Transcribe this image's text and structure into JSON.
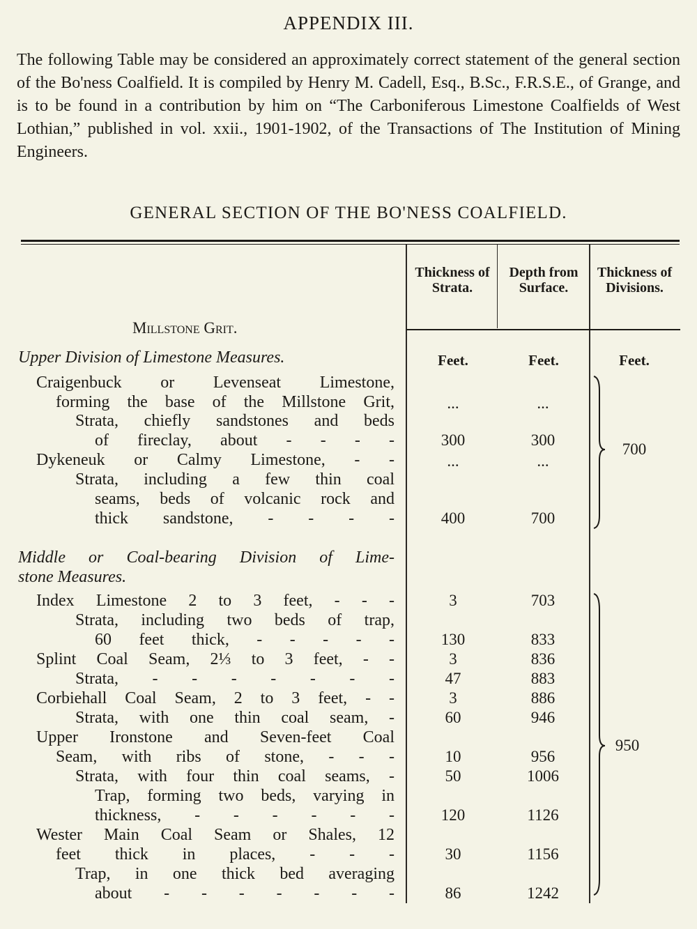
{
  "title": "APPENDIX III.",
  "intro": "The following Table may be considered an approximately correct statement of the general section of the Bo'ness Coalfield. It is compiled by Henry M. Cadell, Esq., B.Sc., F.R.S.E., of Grange, and is to be found in a contribution by him on “The Carboniferous Limestone Coalfields of West Lothian,” published in vol. xxii., 1901-1902, of the Transactions of The Institution of Mining Engineers.",
  "section_title": "GENERAL SECTION OF THE BO'NESS COALFIELD.",
  "table": {
    "headers": [
      "Thickness of Strata.",
      "Depth from Surface.",
      "Thickness of Divisions."
    ],
    "units": [
      "Feet.",
      "Feet.",
      "Feet."
    ],
    "millstone_grit": "Millstone Grit.",
    "upper_division_heading": "Upper Division of Limestone Measures.",
    "rows": [
      {
        "text": "Craigenbuck or Levenseat Limestone,",
        "strata": "",
        "depth": ""
      },
      {
        "text": "forming the base of the Millstone Grit,",
        "strata": "...",
        "depth": "..."
      },
      {
        "text": "Strata, chiefly sandstones and beds",
        "strata": "",
        "depth": ""
      },
      {
        "text": "of fireclay, about - - - -",
        "strata": "300",
        "depth": "300"
      },
      {
        "text": "Dykeneuk or Calmy Limestone, - -",
        "strata": "...",
        "depth": "..."
      },
      {
        "text": "Strata, including a few thin coal",
        "strata": "",
        "depth": ""
      },
      {
        "text": "seams, beds of volcanic rock and",
        "strata": "",
        "depth": ""
      },
      {
        "text": "thick sandstone, - - - -",
        "strata": "400",
        "depth": "700"
      },
      {
        "text": "Middle or Coal-bearing Division of Lime-",
        "strata": "",
        "depth": ""
      },
      {
        "text": "stone Measures.",
        "strata": "",
        "depth": ""
      },
      {
        "text": "Index Limestone 2 to 3 feet, - - -",
        "strata": "3",
        "depth": "703"
      },
      {
        "text": "Strata, including two beds of trap,",
        "strata": "",
        "depth": ""
      },
      {
        "text": "60 feet thick, - - - - -",
        "strata": "130",
        "depth": "833"
      },
      {
        "text": "Splint Coal Seam, 2⅓ to 3 feet, - -",
        "strata": "3",
        "depth": "836"
      },
      {
        "text": "Strata, - - - - - - -",
        "strata": "47",
        "depth": "883"
      },
      {
        "text": "Corbiehall Coal Seam, 2 to 3 feet, - -",
        "strata": "3",
        "depth": "886"
      },
      {
        "text": "Strata, with one thin coal seam, -",
        "strata": "60",
        "depth": "946"
      },
      {
        "text": "Upper Ironstone and Seven-feet Coal",
        "strata": "",
        "depth": ""
      },
      {
        "text": "Seam, with ribs of stone, - - -",
        "strata": "10",
        "depth": "956"
      },
      {
        "text": "Strata, with four thin coal seams, -",
        "strata": "50",
        "depth": "1006"
      },
      {
        "text": "Trap, forming two beds, varying in",
        "strata": "",
        "depth": ""
      },
      {
        "text": "thickness, - - - - - -",
        "strata": "120",
        "depth": "1126"
      },
      {
        "text": "Wester Main Coal Seam or Shales, 12",
        "strata": "",
        "depth": ""
      },
      {
        "text": "feet thick in places, - - -",
        "strata": "30",
        "depth": "1156"
      },
      {
        "text": "Trap, in one thick bed averaging",
        "strata": "",
        "depth": ""
      },
      {
        "text": "about - - - - - - -",
        "strata": "86",
        "depth": "1242"
      }
    ],
    "divisions": [
      "700",
      "950"
    ]
  }
}
